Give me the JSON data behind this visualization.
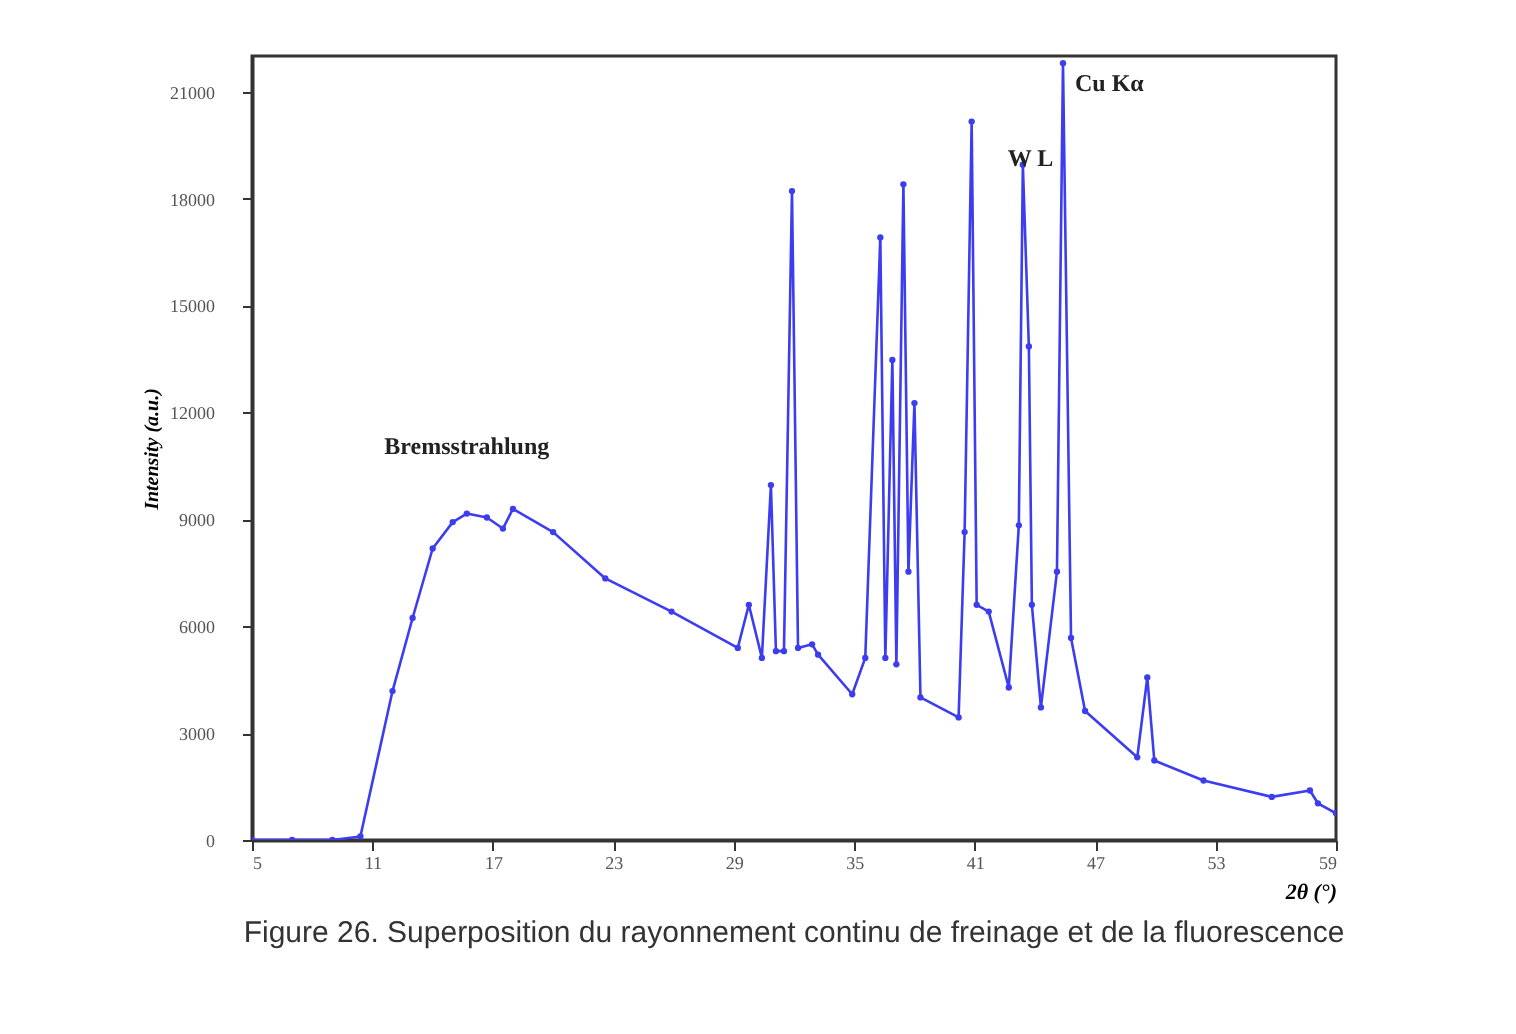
{
  "chart_data": {
    "type": "line",
    "xlabel": "2θ (°)",
    "ylabel": "Intensity (a.u.)",
    "xlim": [
      5,
      59
    ],
    "xticks": [
      5,
      11,
      17,
      23,
      29,
      35,
      41,
      47,
      53,
      59
    ],
    "ylim": [
      0,
      22000
    ],
    "yticks": [
      0,
      3000,
      6000,
      9000,
      12000,
      15000,
      18000,
      21000
    ],
    "grid": false,
    "marker": "circle",
    "line_style": "solid",
    "series": [
      {
        "color": "#3c3cf0",
        "x": [
          5,
          7,
          9,
          10.4,
          12.0,
          13.0,
          14.0,
          15.0,
          15.7,
          16.7,
          17.5,
          18.0,
          20.0,
          22.6,
          25.9,
          29.2,
          29.75,
          30.4,
          30.85,
          31.1,
          31.5,
          31.9,
          32.2,
          32.9,
          33.2,
          34.9,
          35.55,
          36.3,
          36.55,
          36.9,
          37.1,
          37.45,
          37.7,
          38.0,
          38.3,
          40.2,
          40.5,
          40.85,
          41.1,
          41.7,
          42.7,
          43.2,
          43.4,
          43.7,
          43.85,
          44.3,
          45.1,
          45.4,
          45.8,
          46.5,
          49.1,
          49.6,
          49.95,
          52.4,
          55.8,
          57.7,
          58.1,
          59.0
        ],
        "values": [
          0,
          0,
          0,
          100,
          4180,
          6230,
          8180,
          8920,
          9160,
          9050,
          8740,
          9290,
          8640,
          7340,
          6410,
          5390,
          6600,
          5110,
          9960,
          5300,
          5300,
          18210,
          5390,
          5490,
          5200,
          4090,
          5110,
          16910,
          5110,
          13470,
          4930,
          18400,
          7530,
          12260,
          4000,
          3440,
          8640,
          20160,
          6600,
          6410,
          4280,
          8830,
          18950,
          13850,
          6600,
          3720,
          7530,
          21800,
          5670,
          3620,
          2320,
          4560,
          2230,
          1670,
          1210,
          1390,
          1030,
          750
        ]
      }
    ],
    "annotations": [
      {
        "text": "Bremsstrahlung",
        "x": 15.7,
        "y": 9160
      },
      {
        "text": "W L",
        "x": 40.85,
        "y": 20160
      },
      {
        "text": "Cu Kα",
        "x": 45.4,
        "y": 21800
      },
      "Figure 26. Superposition du rayonnement continu de freinage et de la fluorescence"
    ]
  }
}
